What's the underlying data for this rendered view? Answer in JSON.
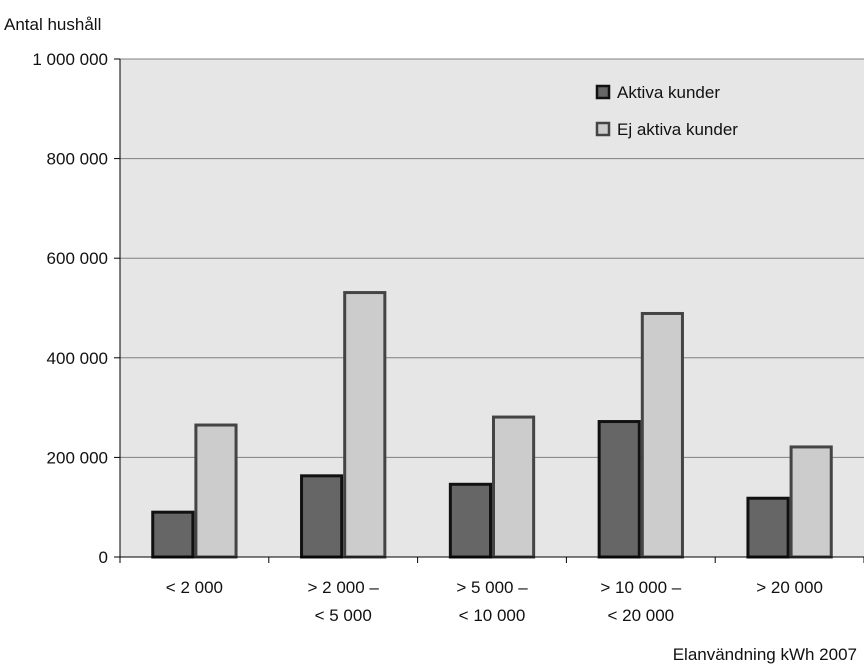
{
  "chart_data": {
    "type": "bar",
    "ylabel": "Antal hushåll",
    "xlabel": "Elanvändning kWh 2007",
    "ylim": [
      0,
      1000000
    ],
    "y_ticks": [
      0,
      200000,
      400000,
      600000,
      800000,
      1000000
    ],
    "y_tick_labels": [
      "0",
      "200 000",
      "400 000",
      "600 000",
      "800 000",
      "1 000 000"
    ],
    "categories": [
      [
        "< 2 000"
      ],
      [
        "> 2 000 –",
        "< 5 000"
      ],
      [
        "> 5 000 –",
        "< 10 000"
      ],
      [
        "> 10 000 –",
        "< 20 000"
      ],
      [
        "> 20 000"
      ]
    ],
    "series": [
      {
        "name": "Aktiva kunder",
        "values": [
          90000,
          163000,
          146000,
          272000,
          118000
        ],
        "color": "#666666",
        "stroke": "#111111"
      },
      {
        "name": "Ej aktiva kunder",
        "values": [
          265000,
          531000,
          281000,
          489000,
          221000
        ],
        "color": "#cccccc",
        "stroke": "#444444"
      }
    ],
    "grid": true,
    "legend_position": "top-right",
    "plot_background": "#e6e6e6"
  }
}
